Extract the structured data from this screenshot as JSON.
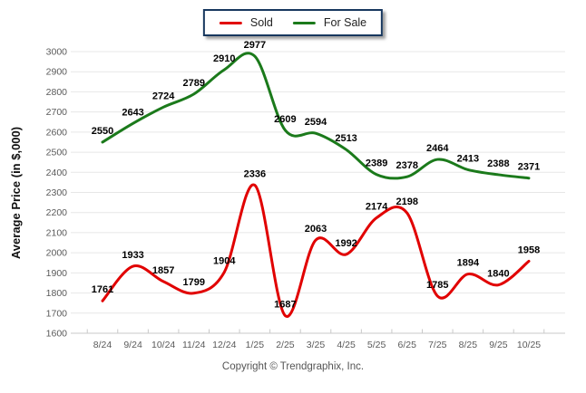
{
  "chart_data": {
    "type": "line",
    "title": "",
    "xlabel": "",
    "ylabel": "Average Price (in $,000)",
    "categories": [
      "8/24",
      "9/24",
      "10/24",
      "11/24",
      "12/24",
      "1/25",
      "2/25",
      "3/25",
      "4/25",
      "5/25",
      "6/25",
      "7/25",
      "8/25",
      "9/25",
      "10/25"
    ],
    "series": [
      {
        "name": "Sold",
        "color": "#e10000",
        "values": [
          1761,
          1933,
          1857,
          1799,
          1904,
          2336,
          1687,
          2063,
          1992,
          2174,
          2198,
          1785,
          1894,
          1840,
          1958
        ]
      },
      {
        "name": "For Sale",
        "color": "#1b7a1b",
        "values": [
          2550,
          2643,
          2724,
          2789,
          2910,
          2977,
          2609,
          2594,
          2513,
          2389,
          2378,
          2464,
          2413,
          2388,
          2371
        ]
      }
    ],
    "ylim": [
      1600,
      3000
    ],
    "y_tick_step": 100,
    "y_ticks": [
      1600,
      1700,
      1800,
      1900,
      2000,
      2100,
      2200,
      2300,
      2400,
      2500,
      2600,
      2700,
      2800,
      2900,
      3000
    ],
    "grid": true,
    "smooth": true,
    "data_labels": true,
    "legend_position": "top-center"
  },
  "footer": {
    "copyright": "Copyright © Trendgraphix, Inc."
  },
  "colors": {
    "grid": "#e7e7e7",
    "axis_line": "#c9c9c9",
    "tick_text": "#5a5a5a",
    "data_label_text": "#000000",
    "legend_border": "#17375e",
    "background": "#ffffff"
  }
}
